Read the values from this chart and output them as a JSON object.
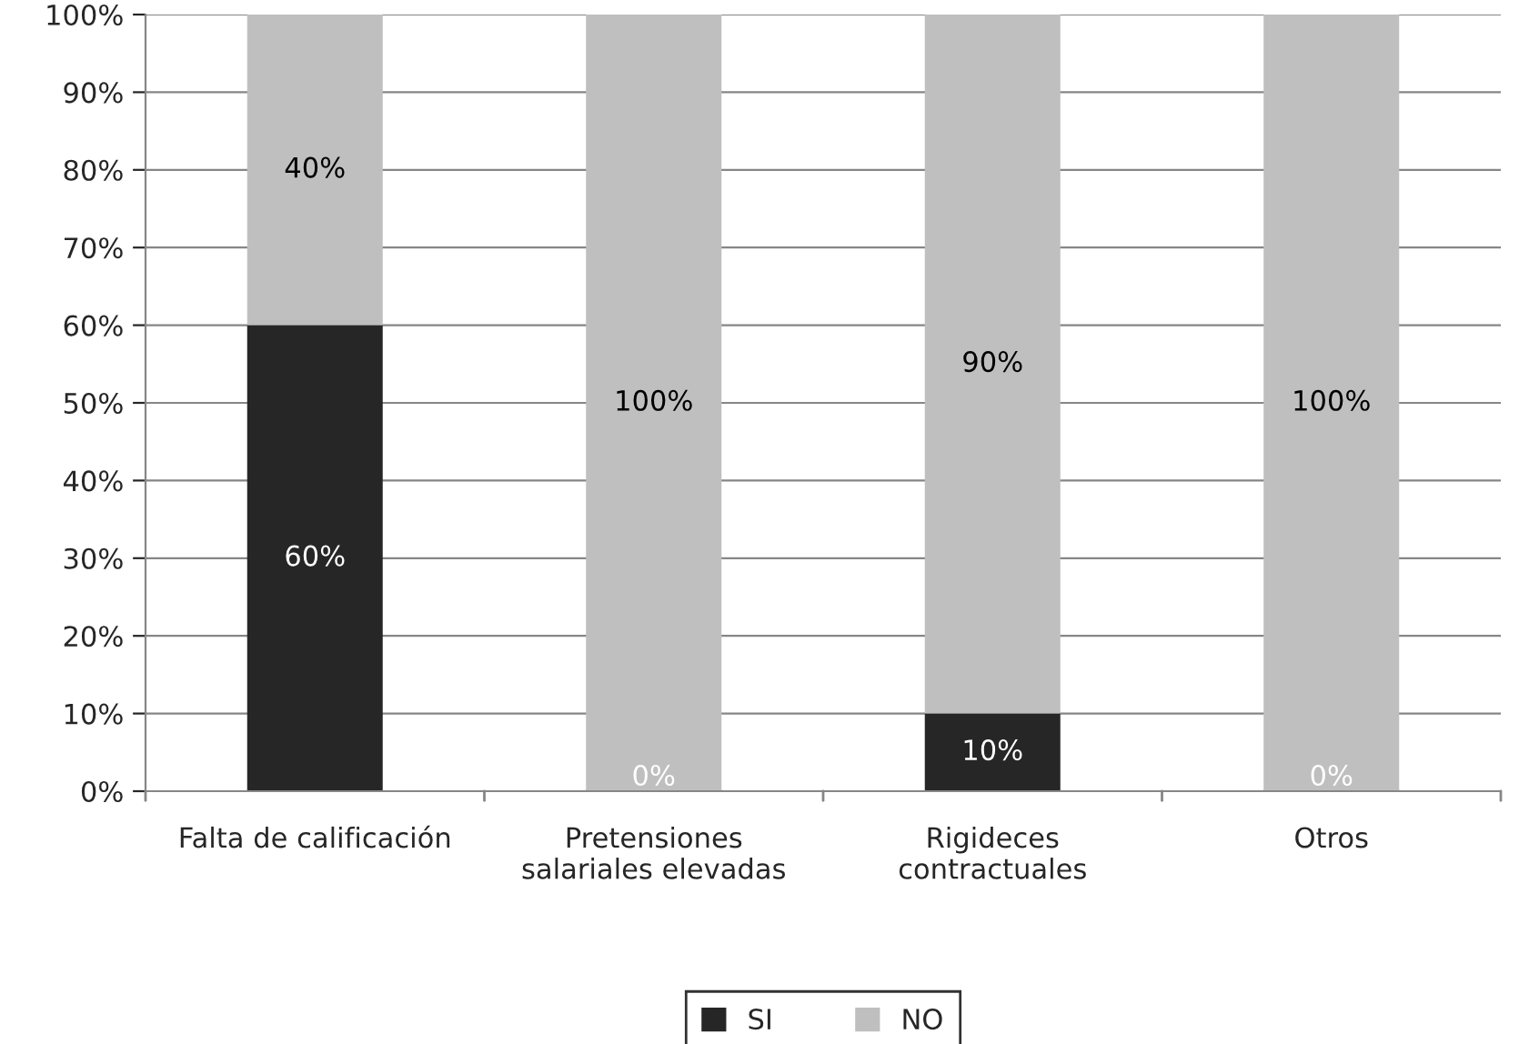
{
  "chart_data": {
    "type": "bar",
    "stacked": true,
    "categories": [
      "Falta de calificación",
      "Pretensiones\nsalariales elevadas",
      "Rigideces\ncontractuales",
      "Otros"
    ],
    "series": [
      {
        "name": "SI",
        "color": "#262626",
        "values": [
          60,
          0,
          10,
          0
        ],
        "value_labels": [
          "60%",
          "0%",
          "10%",
          "0%"
        ]
      },
      {
        "name": "NO",
        "color": "#bfbfbf",
        "values": [
          40,
          100,
          90,
          100
        ],
        "value_labels": [
          "40%",
          "100%",
          "90%",
          "100%"
        ]
      }
    ],
    "ylim": [
      0,
      100
    ],
    "yticks": [
      {
        "value": 0,
        "label": "0%"
      },
      {
        "value": 10,
        "label": "10%"
      },
      {
        "value": 20,
        "label": "20%"
      },
      {
        "value": 30,
        "label": "30%"
      },
      {
        "value": 40,
        "label": "40%"
      },
      {
        "value": 50,
        "label": "50%"
      },
      {
        "value": 60,
        "label": "60%"
      },
      {
        "value": 70,
        "label": "70%"
      },
      {
        "value": 80,
        "label": "80%"
      },
      {
        "value": 90,
        "label": "90%"
      },
      {
        "value": 100,
        "label": "100%"
      }
    ],
    "grid": "y",
    "legend": "bottom"
  }
}
